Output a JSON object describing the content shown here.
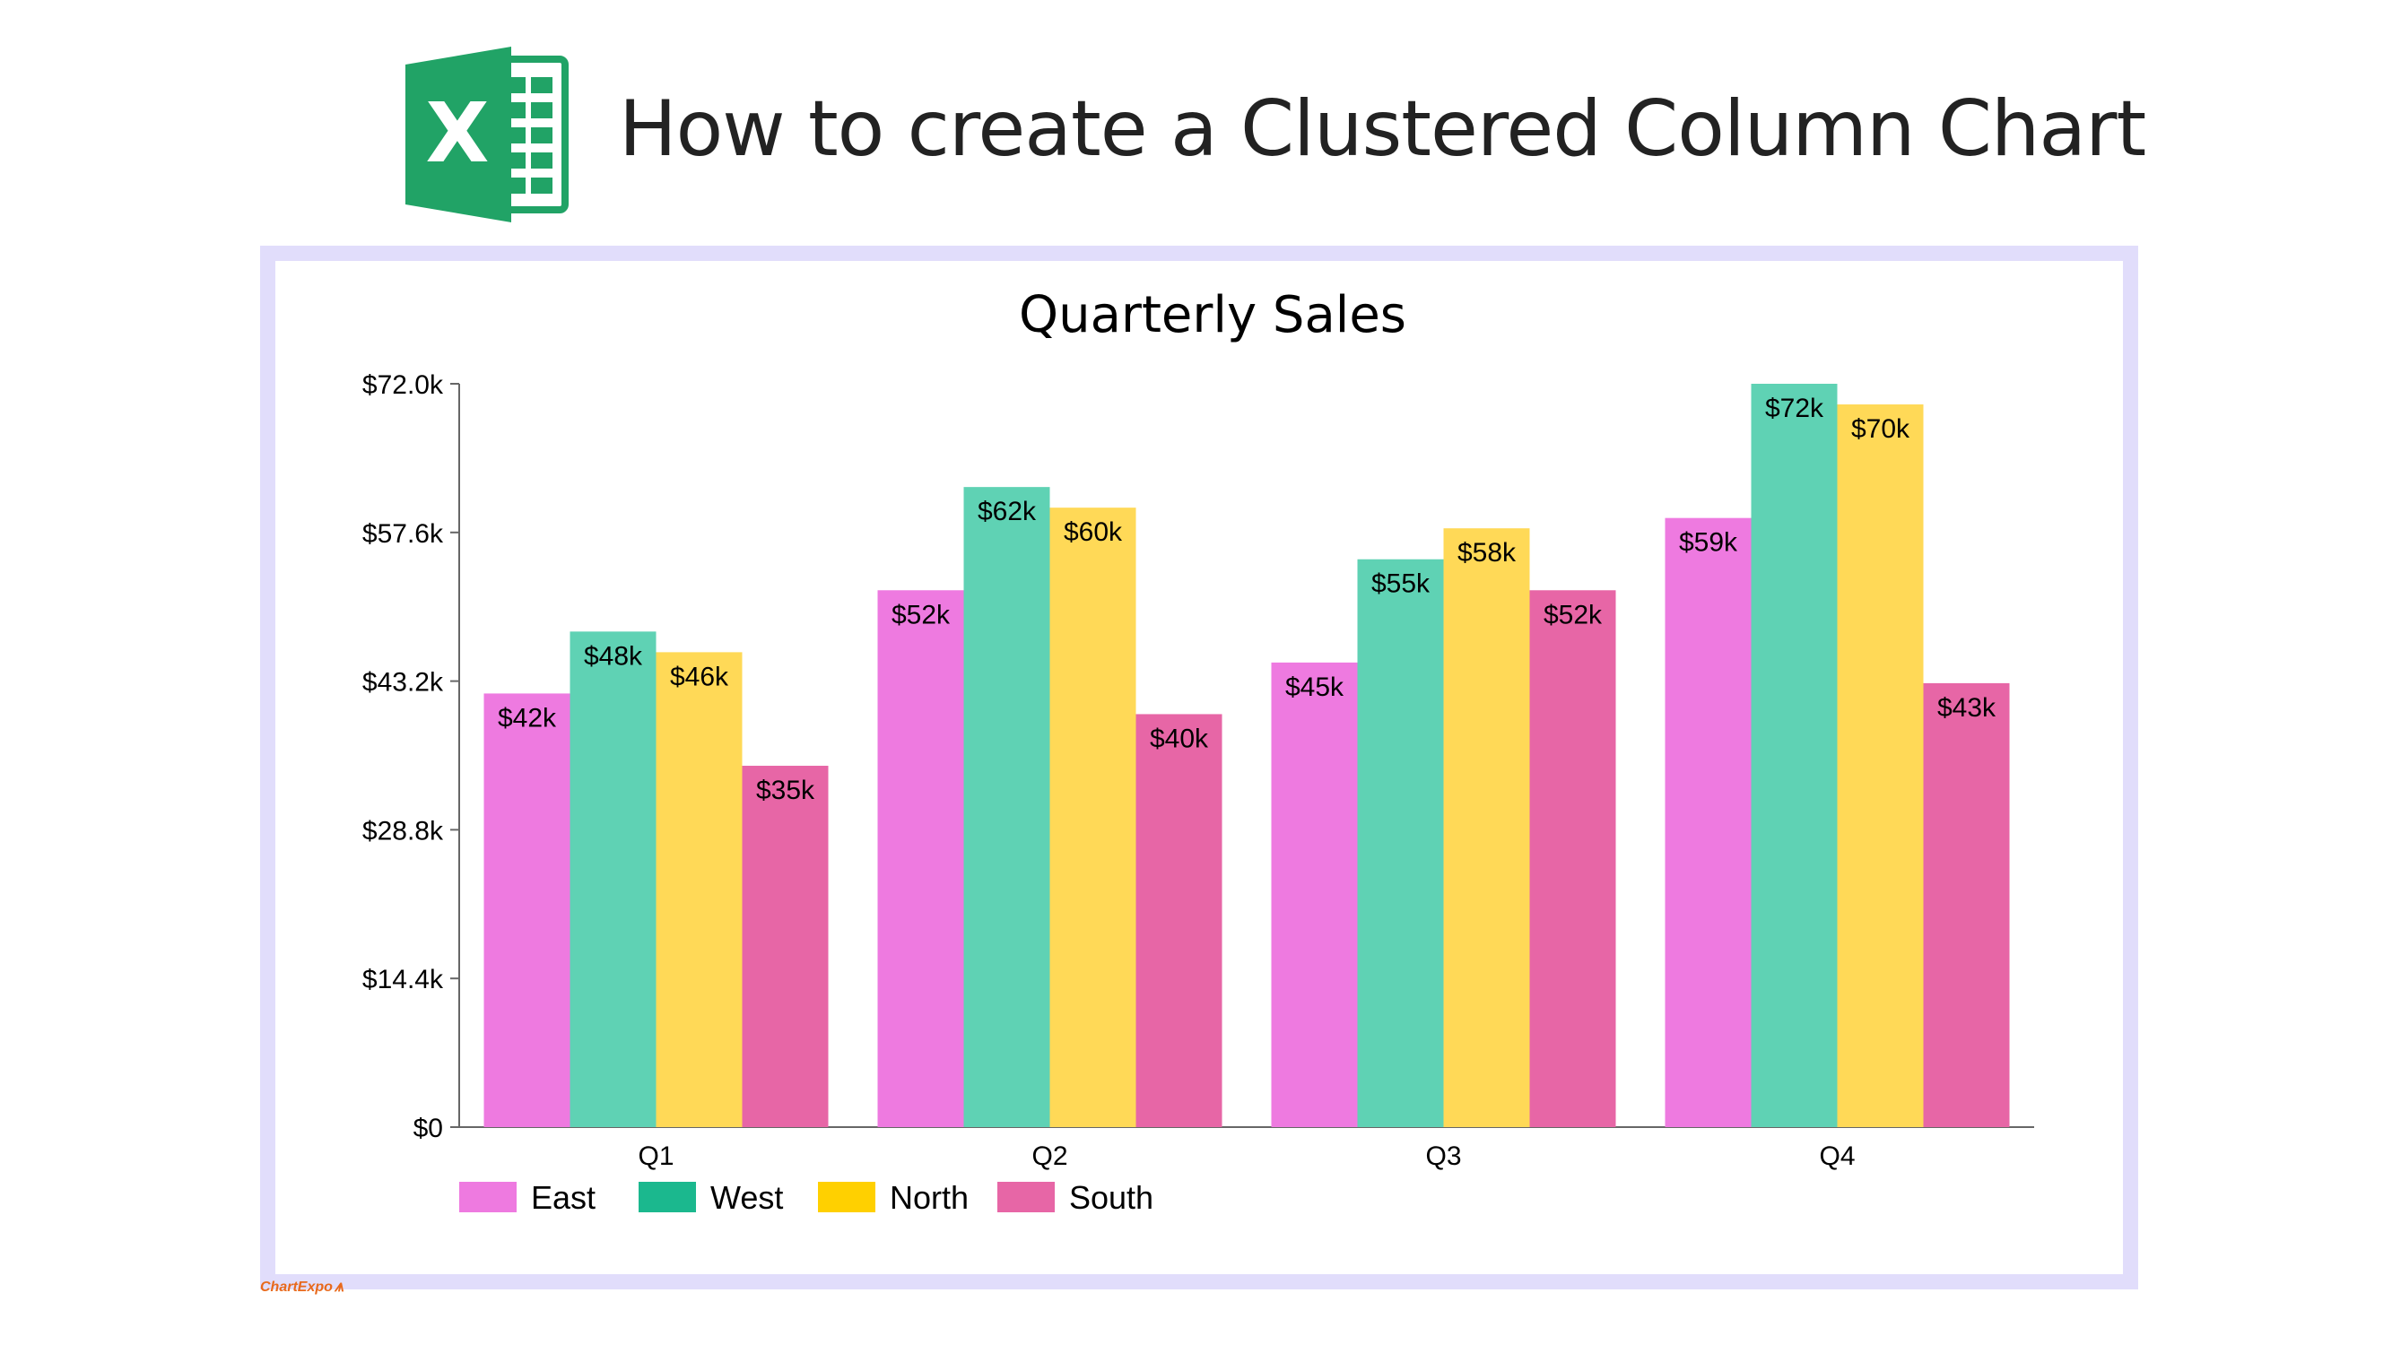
{
  "header": {
    "logo_letter": "X",
    "title": "How to create a Clustered Column Chart"
  },
  "icons": {
    "logo": "excel-icon"
  },
  "colors": {
    "frame": "#e1ddfb",
    "logo_green": "#21a366",
    "logo_dark": "#107c41",
    "axis": "#666666"
  },
  "chart_data": {
    "type": "bar",
    "title": "Quarterly Sales",
    "xlabel": "",
    "ylabel": "",
    "categories": [
      "Q1",
      "Q2",
      "Q3",
      "Q4"
    ],
    "ylim": [
      0,
      72000
    ],
    "yticks": [
      0,
      14400,
      28800,
      43200,
      57600,
      72000
    ],
    "ytick_labels": [
      "$0",
      "$14.4k",
      "$28.8k",
      "$43.2k",
      "$57.6k",
      "$72.0k"
    ],
    "grid": false,
    "legend_position": "bottom-left",
    "series": [
      {
        "name": "East",
        "color": "#ee7ae0",
        "values": [
          42000,
          52000,
          45000,
          59000
        ],
        "labels": [
          "$42k",
          "$52k",
          "$45k",
          "$59k"
        ]
      },
      {
        "name": "West",
        "color": "#5fd2b4",
        "values": [
          48000,
          62000,
          55000,
          72000
        ],
        "labels": [
          "$48k",
          "$62k",
          "$55k",
          "$72k"
        ]
      },
      {
        "name": "North",
        "color": "#ffd957",
        "values": [
          46000,
          60000,
          58000,
          70000
        ],
        "labels": [
          "$46k",
          "$60k",
          "$58k",
          "$70k"
        ]
      },
      {
        "name": "South",
        "color": "#e766a6",
        "values": [
          35000,
          40000,
          52000,
          43000
        ],
        "labels": [
          "$35k",
          "$40k",
          "$52k",
          "$43k"
        ]
      }
    ],
    "legend_swatch_colors": [
      "#ee7ae0",
      "#1bb88e",
      "#ffd000",
      "#e766a6"
    ]
  },
  "brand": {
    "text": "ChartExpo",
    "mark": "⩚"
  }
}
